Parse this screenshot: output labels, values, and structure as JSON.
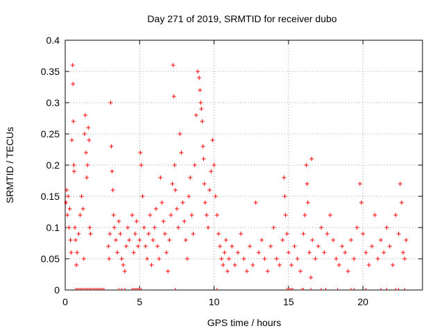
{
  "chart_data": {
    "type": "scatter",
    "title": "Day 271 of 2019, SRMTID for receiver dubo",
    "xlabel": "GPS time / hours",
    "ylabel": "SRMTID / TECUs",
    "xlim": [
      0,
      24
    ],
    "ylim": [
      0,
      0.4
    ],
    "grid": true,
    "marker": "+",
    "color": "#ff0000",
    "xticks": [
      {
        "value": 0,
        "label": "0"
      },
      {
        "value": 5,
        "label": "5"
      },
      {
        "value": 10,
        "label": "10"
      },
      {
        "value": 15,
        "label": "15"
      },
      {
        "value": 20,
        "label": "20"
      }
    ],
    "yticks": [
      {
        "value": 0,
        "label": "0"
      },
      {
        "value": 0.05,
        "label": "0.05"
      },
      {
        "value": 0.1,
        "label": "0.1"
      },
      {
        "value": 0.15,
        "label": "0.15"
      },
      {
        "value": 0.2,
        "label": "0.2"
      },
      {
        "value": 0.25,
        "label": "0.25"
      },
      {
        "value": 0.3,
        "label": "0.3"
      },
      {
        "value": 0.35,
        "label": "0.35"
      },
      {
        "value": 0.4,
        "label": "0.4"
      }
    ],
    "series": [
      {
        "name": "SRMTID",
        "points": [
          [
            0.05,
            0.14
          ],
          [
            0.1,
            0.16
          ],
          [
            0.15,
            0.12
          ],
          [
            0.2,
            0.15
          ],
          [
            0.25,
            0.1
          ],
          [
            0.3,
            0.13
          ],
          [
            0.35,
            0.08
          ],
          [
            0.4,
            0.06
          ],
          [
            0.45,
            0.24
          ],
          [
            0.5,
            0.36
          ],
          [
            0.52,
            0.33
          ],
          [
            0.55,
            0.27
          ],
          [
            0.58,
            0.2
          ],
          [
            0.6,
            0.19
          ],
          [
            0.65,
            0.1
          ],
          [
            0.7,
            0.08
          ],
          [
            0.75,
            0.04
          ],
          [
            0.8,
            0.06
          ],
          [
            0.9,
            0.09
          ],
          [
            1.0,
            0.12
          ],
          [
            1.1,
            0.15
          ],
          [
            1.2,
            0.13
          ],
          [
            1.25,
            0.05
          ],
          [
            1.3,
            0.25
          ],
          [
            1.35,
            0.28
          ],
          [
            1.4,
            0.22
          ],
          [
            1.45,
            0.18
          ],
          [
            1.5,
            0.2
          ],
          [
            1.55,
            0.26
          ],
          [
            1.6,
            0.24
          ],
          [
            1.65,
            0.1
          ],
          [
            1.7,
            0.09
          ],
          [
            2.9,
            0.07
          ],
          [
            2.95,
            0.05
          ],
          [
            3.0,
            0.09
          ],
          [
            3.05,
            0.3
          ],
          [
            3.1,
            0.23
          ],
          [
            3.15,
            0.19
          ],
          [
            3.2,
            0.16
          ],
          [
            3.25,
            0.12
          ],
          [
            3.3,
            0.1
          ],
          [
            3.4,
            0.08
          ],
          [
            3.5,
            0.06
          ],
          [
            3.6,
            0.11
          ],
          [
            3.7,
            0.09
          ],
          [
            3.8,
            0.05
          ],
          [
            3.9,
            0.04
          ],
          [
            4.0,
            0.03
          ],
          [
            4.1,
            0.07
          ],
          [
            4.2,
            0.1
          ],
          [
            4.3,
            0.08
          ],
          [
            4.5,
            0.12
          ],
          [
            4.6,
            0.06
          ],
          [
            4.7,
            0.09
          ],
          [
            4.8,
            0.11
          ],
          [
            4.9,
            0.07
          ],
          [
            5.0,
            0.08
          ],
          [
            5.05,
            0.22
          ],
          [
            5.1,
            0.2
          ],
          [
            5.2,
            0.15
          ],
          [
            5.3,
            0.1
          ],
          [
            5.4,
            0.07
          ],
          [
            5.5,
            0.05
          ],
          [
            5.6,
            0.09
          ],
          [
            5.7,
            0.12
          ],
          [
            5.8,
            0.04
          ],
          [
            5.9,
            0.08
          ],
          [
            6.0,
            0.1
          ],
          [
            6.1,
            0.13
          ],
          [
            6.2,
            0.07
          ],
          [
            6.3,
            0.05
          ],
          [
            6.4,
            0.18
          ],
          [
            6.5,
            0.14
          ],
          [
            6.6,
            0.11
          ],
          [
            6.7,
            0.09
          ],
          [
            6.8,
            0.06
          ],
          [
            6.9,
            0.03
          ],
          [
            7.0,
            0.08
          ],
          [
            7.1,
            0.12
          ],
          [
            7.2,
            0.17
          ],
          [
            7.25,
            0.36
          ],
          [
            7.3,
            0.31
          ],
          [
            7.35,
            0.2
          ],
          [
            7.4,
            0.16
          ],
          [
            7.5,
            0.13
          ],
          [
            7.6,
            0.1
          ],
          [
            7.7,
            0.25
          ],
          [
            7.8,
            0.22
          ],
          [
            7.9,
            0.14
          ],
          [
            8.0,
            0.11
          ],
          [
            8.1,
            0.08
          ],
          [
            8.2,
            0.05
          ],
          [
            8.3,
            0.15
          ],
          [
            8.4,
            0.18
          ],
          [
            8.5,
            0.12
          ],
          [
            8.6,
            0.09
          ],
          [
            8.7,
            0.2
          ],
          [
            8.8,
            0.28
          ],
          [
            8.9,
            0.35
          ],
          [
            9.0,
            0.34
          ],
          [
            9.05,
            0.32
          ],
          [
            9.1,
            0.3
          ],
          [
            9.15,
            0.29
          ],
          [
            9.2,
            0.27
          ],
          [
            9.25,
            0.23
          ],
          [
            9.3,
            0.21
          ],
          [
            9.35,
            0.17
          ],
          [
            9.4,
            0.14
          ],
          [
            9.5,
            0.12
          ],
          [
            9.6,
            0.1
          ],
          [
            9.7,
            0.16
          ],
          [
            9.8,
            0.19
          ],
          [
            9.9,
            0.24
          ],
          [
            10.0,
            0.2
          ],
          [
            10.1,
            0.15
          ],
          [
            10.2,
            0.12
          ],
          [
            10.3,
            0.09
          ],
          [
            10.4,
            0.07
          ],
          [
            10.5,
            0.05
          ],
          [
            10.6,
            0.04
          ],
          [
            10.7,
            0.06
          ],
          [
            10.8,
            0.08
          ],
          [
            10.9,
            0.03
          ],
          [
            11.0,
            0.05
          ],
          [
            11.2,
            0.07
          ],
          [
            11.4,
            0.04
          ],
          [
            11.6,
            0.06
          ],
          [
            11.8,
            0.09
          ],
          [
            12.0,
            0.05
          ],
          [
            12.2,
            0.03
          ],
          [
            12.4,
            0.07
          ],
          [
            12.6,
            0.04
          ],
          [
            12.8,
            0.14
          ],
          [
            13.0,
            0.06
          ],
          [
            13.2,
            0.08
          ],
          [
            13.4,
            0.05
          ],
          [
            13.6,
            0.03
          ],
          [
            13.8,
            0.07
          ],
          [
            14.0,
            0.1
          ],
          [
            14.2,
            0.05
          ],
          [
            14.4,
            0.04
          ],
          [
            14.6,
            0.08
          ],
          [
            14.7,
            0.18
          ],
          [
            14.75,
            0.15
          ],
          [
            14.8,
            0.12
          ],
          [
            14.9,
            0.09
          ],
          [
            15.0,
            0.06
          ],
          [
            15.2,
            0.04
          ],
          [
            15.4,
            0.07
          ],
          [
            15.6,
            0.05
          ],
          [
            15.8,
            0.03
          ],
          [
            16.0,
            0.09
          ],
          [
            16.1,
            0.12
          ],
          [
            16.2,
            0.2
          ],
          [
            16.25,
            0.17
          ],
          [
            16.3,
            0.14
          ],
          [
            16.4,
            0.06
          ],
          [
            16.5,
            0.02
          ],
          [
            16.55,
            0.21
          ],
          [
            16.6,
            0.08
          ],
          [
            16.8,
            0.05
          ],
          [
            17.0,
            0.07
          ],
          [
            17.2,
            0.1
          ],
          [
            17.4,
            0.06
          ],
          [
            17.6,
            0.09
          ],
          [
            17.8,
            0.12
          ],
          [
            18.0,
            0.08
          ],
          [
            18.2,
            0.05
          ],
          [
            18.4,
            0.04
          ],
          [
            18.6,
            0.07
          ],
          [
            18.8,
            0.06
          ],
          [
            19.0,
            0.03
          ],
          [
            19.2,
            0.08
          ],
          [
            19.4,
            0.05
          ],
          [
            19.6,
            0.1
          ],
          [
            19.8,
            0.17
          ],
          [
            19.9,
            0.14
          ],
          [
            20.0,
            0.09
          ],
          [
            20.2,
            0.06
          ],
          [
            20.4,
            0.04
          ],
          [
            20.6,
            0.07
          ],
          [
            20.8,
            0.12
          ],
          [
            21.0,
            0.05
          ],
          [
            21.2,
            0.08
          ],
          [
            21.4,
            0.06
          ],
          [
            21.6,
            0.1
          ],
          [
            21.8,
            0.07
          ],
          [
            22.0,
            0.04
          ],
          [
            22.2,
            0.12
          ],
          [
            22.4,
            0.09
          ],
          [
            22.5,
            0.17
          ],
          [
            22.6,
            0.14
          ],
          [
            22.7,
            0.06
          ],
          [
            22.8,
            0.05
          ],
          [
            22.9,
            0.08
          ]
        ]
      }
    ],
    "zero_markers": [
      0.7,
      0.8,
      0.9,
      1.0,
      1.1,
      1.2,
      1.3,
      1.4,
      1.5,
      1.6,
      1.7,
      1.8,
      1.9,
      2.0,
      2.1,
      2.2,
      2.3,
      2.4,
      2.5,
      2.6,
      3.6,
      3.8,
      4.0,
      4.5,
      4.6,
      4.7,
      4.8,
      4.9,
      5.0,
      5.1,
      7.4,
      10.2,
      14.9,
      15.0,
      15.1,
      15.2,
      15.3,
      15.9,
      16.0,
      16.5,
      17.2,
      17.5,
      18.3,
      19.2,
      19.4,
      20.2,
      21.2,
      21.6,
      22.2,
      22.4,
      22.8
    ]
  }
}
